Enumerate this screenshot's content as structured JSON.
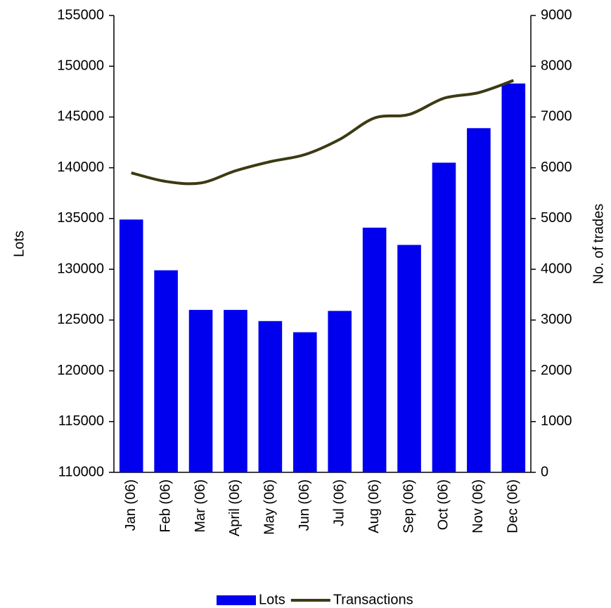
{
  "chart_data": {
    "type": "bar",
    "y_label": "Lots",
    "y2_label": "No. of trades",
    "categories": [
      "Jan (06)",
      "Feb (06)",
      "Mar (06)",
      "April (06)",
      "May (06)",
      "Jun (06)",
      "Jul (06)",
      "Aug (06)",
      "Sep (06)",
      "Oct (06)",
      "Nov (06)",
      "Dec (06)"
    ],
    "series": [
      {
        "name": "Lots",
        "type": "bar",
        "color": "#0000ee",
        "values": [
          134900,
          129900,
          126000,
          126000,
          124900,
          123800,
          125900,
          134100,
          132400,
          140500,
          143900,
          148300
        ]
      },
      {
        "name": "Transactions",
        "type": "line",
        "axis": "y2",
        "color": "#3b3a12",
        "values": [
          5900,
          5730,
          5700,
          5940,
          6120,
          6260,
          6560,
          6980,
          7050,
          7370,
          7480,
          7720
        ]
      }
    ],
    "ylim": [
      110000,
      155000
    ],
    "yticks": [
      110000,
      115000,
      120000,
      125000,
      130000,
      135000,
      140000,
      145000,
      150000,
      155000
    ],
    "y2lim": [
      0,
      9000
    ],
    "y2ticks": [
      0,
      1000,
      2000,
      3000,
      4000,
      5000,
      6000,
      7000,
      8000,
      9000
    ],
    "legend": "bottom"
  }
}
